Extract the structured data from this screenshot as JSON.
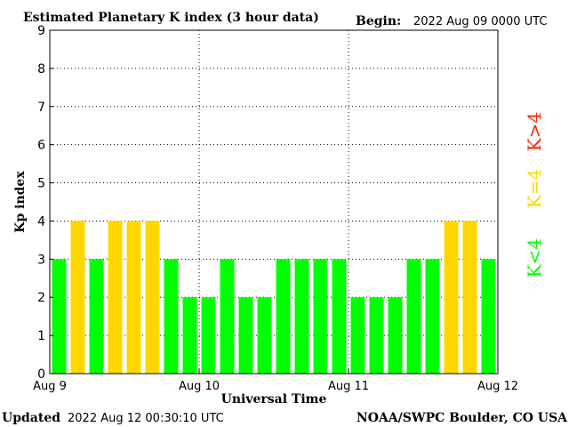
{
  "header": {
    "title": "Estimated Planetary K index (3 hour data)",
    "begin_label": "Begin:",
    "begin_value": "2022 Aug 09 0000 UTC"
  },
  "footer": {
    "updated_label": "Updated",
    "updated_value": "2022 Aug 12 00:30:10 UTC",
    "source": "NOAA/SWPC Boulder, CO USA"
  },
  "legend": {
    "items": [
      {
        "label": "K<4",
        "color": "#00ff00"
      },
      {
        "label": "K=4",
        "color": "#ffd700"
      },
      {
        "label": "K>4",
        "color": "#ff2000"
      }
    ]
  },
  "chart_data": {
    "type": "bar",
    "title": "Estimated Planetary K index (3 hour data)",
    "xlabel": "Universal Time",
    "ylabel": "Kp index",
    "ylim": [
      0,
      9
    ],
    "yticks": [
      "0",
      "1",
      "2",
      "3",
      "4",
      "5",
      "6",
      "7",
      "8",
      "9"
    ],
    "xticks": [
      "Aug 9",
      "Aug 10",
      "Aug 11",
      "Aug 12"
    ],
    "grid": true,
    "values": [
      3,
      4,
      3,
      4,
      4,
      4,
      3,
      2,
      2,
      3,
      2,
      2,
      3,
      3,
      3,
      3,
      2,
      2,
      2,
      3,
      3,
      4,
      4,
      3
    ],
    "colors": {
      "low": "#00ff00",
      "equal": "#ffd700",
      "high": "#ff2000"
    }
  }
}
